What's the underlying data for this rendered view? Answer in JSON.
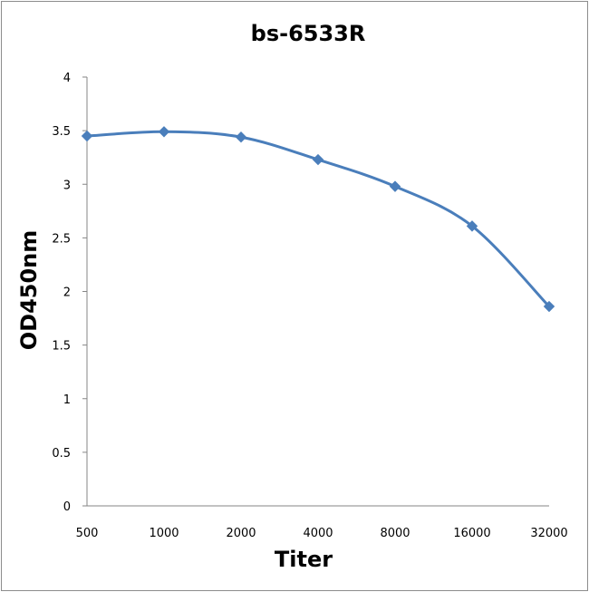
{
  "chart_data": {
    "type": "line",
    "title": "bs-6533R",
    "xlabel": "Titer",
    "ylabel": "OD450nm",
    "categories": [
      "500",
      "1000",
      "2000",
      "4000",
      "8000",
      "16000",
      "32000"
    ],
    "series": [
      {
        "values": [
          3.45,
          3.49,
          3.44,
          3.23,
          2.98,
          2.61,
          1.86
        ]
      }
    ],
    "ylim": [
      0,
      4
    ],
    "yticks": [
      "0",
      "0.5",
      "1",
      "1.5",
      "2",
      "2.5",
      "3",
      "3.5",
      "4"
    ],
    "grid": false,
    "legend": "none",
    "marker": "diamond",
    "line_color": "#4a7ebb"
  }
}
